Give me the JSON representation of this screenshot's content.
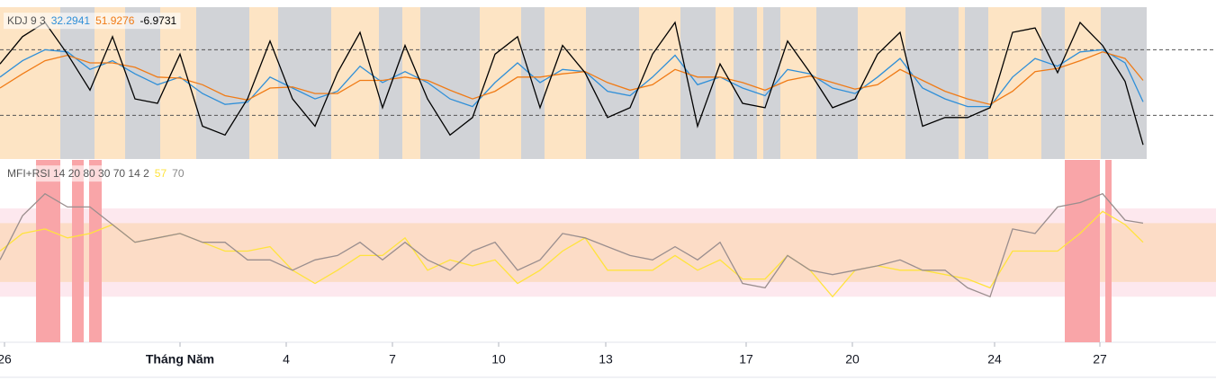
{
  "chart_data": [
    {
      "type": "line",
      "name": "KDJ 9 3",
      "xlim": [
        0,
        135.1
      ],
      "ylim": [
        -20,
        119
      ],
      "hlines": [
        80,
        20
      ],
      "x": [
        0,
        2.5,
        5,
        7.5,
        10,
        12.5,
        15,
        17.5,
        20,
        22.5,
        25,
        27.5,
        30,
        32.5,
        35,
        37.5,
        40,
        42.5,
        45,
        47.5,
        50,
        52.5,
        55,
        57.5,
        60,
        62.5,
        65,
        67.5,
        70,
        72.5,
        75,
        77.5,
        80,
        82.5,
        85,
        87.5,
        90,
        92.5,
        95,
        97.5,
        100,
        102.5,
        105,
        107.5,
        110,
        112.5,
        115,
        117.5,
        120,
        122.5,
        125,
        127
      ],
      "series": [
        {
          "color": "#2f8fd8",
          "values": [
            55,
            70,
            80,
            78,
            62,
            70,
            58,
            48,
            55,
            40,
            30,
            32,
            55,
            45,
            35,
            42,
            65,
            50,
            60,
            50,
            35,
            28,
            50,
            68,
            50,
            62,
            60,
            42,
            38,
            55,
            75,
            48,
            55,
            45,
            38,
            62,
            58,
            45,
            40,
            55,
            72,
            45,
            35,
            28,
            28,
            55,
            72,
            65,
            78,
            80,
            68,
            32.2941
          ]
        },
        {
          "color": "#f07b16",
          "values": [
            45,
            58,
            70,
            75,
            68,
            68,
            64,
            55,
            54,
            48,
            38,
            34,
            45,
            46,
            40,
            40,
            52,
            52,
            55,
            52,
            43,
            35,
            42,
            55,
            55,
            58,
            60,
            50,
            43,
            48,
            62,
            55,
            55,
            50,
            43,
            52,
            56,
            50,
            44,
            48,
            62,
            52,
            42,
            35,
            30,
            42,
            60,
            63,
            70,
            78,
            72,
            51.9276
          ]
        },
        {
          "color": "#000000",
          "values": [
            67,
            92,
            105,
            76,
            43,
            92,
            35,
            31,
            76,
            10,
            2,
            35,
            88,
            35,
            10,
            59,
            96,
            27,
            84,
            35,
            2,
            18,
            76,
            92,
            27,
            84,
            59,
            18,
            27,
            76,
            105,
            10,
            67,
            31,
            27,
            88,
            59,
            27,
            35,
            76,
            96,
            10,
            18,
            18,
            27,
            96,
            100,
            59,
            105,
            84,
            51,
            -6.9731
          ]
        }
      ],
      "bands": [
        {
          "start": 0,
          "end": 6.7,
          "color": "#fde4c4"
        },
        {
          "start": 6.7,
          "end": 10.5,
          "color": "#d1d3d7"
        },
        {
          "start": 10.5,
          "end": 13.9,
          "color": "#fde4c4"
        },
        {
          "start": 13.9,
          "end": 17.8,
          "color": "#d1d3d7"
        },
        {
          "start": 17.8,
          "end": 21.8,
          "color": "#fde4c4"
        },
        {
          "start": 21.8,
          "end": 27.7,
          "color": "#d1d3d7"
        },
        {
          "start": 27.7,
          "end": 30.9,
          "color": "#fde4c4"
        },
        {
          "start": 30.9,
          "end": 36.8,
          "color": "#d1d3d7"
        },
        {
          "start": 36.8,
          "end": 42.1,
          "color": "#fde4c4"
        },
        {
          "start": 42.1,
          "end": 44.7,
          "color": "#d1d3d7"
        },
        {
          "start": 44.7,
          "end": 46.7,
          "color": "#fde4c4"
        },
        {
          "start": 46.7,
          "end": 53.3,
          "color": "#d1d3d7"
        },
        {
          "start": 53.3,
          "end": 57.9,
          "color": "#fde4c4"
        },
        {
          "start": 57.9,
          "end": 60.5,
          "color": "#d1d3d7"
        },
        {
          "start": 60.5,
          "end": 65.1,
          "color": "#fde4c4"
        },
        {
          "start": 65.1,
          "end": 71,
          "color": "#d1d3d7"
        },
        {
          "start": 71,
          "end": 75.6,
          "color": "#fde4c4"
        },
        {
          "start": 75.6,
          "end": 79.5,
          "color": "#d1d3d7"
        },
        {
          "start": 79.5,
          "end": 81.5,
          "color": "#fde4c4"
        },
        {
          "start": 81.5,
          "end": 84.1,
          "color": "#d1d3d7"
        },
        {
          "start": 84.1,
          "end": 84.8,
          "color": "#fde4c4"
        },
        {
          "start": 84.8,
          "end": 86.7,
          "color": "#d1d3d7"
        },
        {
          "start": 86.7,
          "end": 90.7,
          "color": "#fde4c4"
        },
        {
          "start": 90.7,
          "end": 95.3,
          "color": "#d1d3d7"
        },
        {
          "start": 95.3,
          "end": 100.6,
          "color": "#fde4c4"
        },
        {
          "start": 100.6,
          "end": 106.5,
          "color": "#d1d3d7"
        },
        {
          "start": 106.5,
          "end": 107.2,
          "color": "#fde4c4"
        },
        {
          "start": 107.2,
          "end": 109.8,
          "color": "#d1d3d7"
        },
        {
          "start": 109.8,
          "end": 115.7,
          "color": "#fde4c4"
        },
        {
          "start": 115.7,
          "end": 118.3,
          "color": "#d1d3d7"
        },
        {
          "start": 118.3,
          "end": 122.3,
          "color": "#fde4c4"
        },
        {
          "start": 122.3,
          "end": 127.4,
          "color": "#d1d3d7"
        }
      ]
    },
    {
      "type": "line",
      "name": "MFI+RSI 14 20 80 30 70 14 2",
      "xlim": [
        0,
        135.1
      ],
      "ylim": [
        -11,
        113
      ],
      "xticks": [
        {
          "value": 0.5,
          "label": "26"
        },
        {
          "value": 20,
          "label": "Tháng Năm"
        },
        {
          "value": 31.8,
          "label": "4"
        },
        {
          "value": 43.6,
          "label": "7"
        },
        {
          "value": 55.4,
          "label": "10"
        },
        {
          "value": 67.3,
          "label": "13"
        },
        {
          "value": 82.9,
          "label": "17"
        },
        {
          "value": 94.7,
          "label": "20"
        },
        {
          "value": 110.5,
          "label": "24"
        },
        {
          "value": 122.2,
          "label": "27"
        }
      ],
      "x": [
        0,
        2.5,
        5,
        7.5,
        10,
        12.5,
        15,
        17.5,
        20,
        22.5,
        25,
        27.5,
        30,
        32.5,
        35,
        37.5,
        40,
        42.5,
        45,
        47.5,
        50,
        52.5,
        55,
        57.5,
        60,
        62.5,
        65,
        67.5,
        70,
        72.5,
        75,
        77.5,
        80,
        82.5,
        85,
        87.5,
        90,
        92.5,
        95,
        97.5,
        100,
        102.5,
        105,
        107.5,
        110,
        112.5,
        115,
        117.5,
        120,
        122.5,
        125,
        127
      ],
      "series": [
        {
          "color": "#ffe33d",
          "values": [
            51,
            63,
            66,
            60,
            63,
            69,
            57,
            60,
            63,
            57,
            51,
            51,
            54,
            38,
            29,
            38,
            48,
            48,
            60,
            38,
            45,
            41,
            45,
            29,
            38,
            51,
            60,
            38,
            38,
            38,
            48,
            38,
            45,
            32,
            32,
            48,
            38,
            20,
            38,
            41,
            38,
            38,
            35,
            32,
            26,
            51,
            51,
            51,
            63,
            78,
            69,
            57
          ]
        },
        {
          "color": "#9a8e8e",
          "values": [
            45,
            75,
            90,
            81,
            81,
            69,
            57,
            60,
            63,
            57,
            57,
            45,
            45,
            38,
            45,
            48,
            57,
            45,
            57,
            45,
            38,
            51,
            57,
            38,
            45,
            63,
            60,
            54,
            48,
            45,
            54,
            45,
            57,
            29,
            26,
            48,
            38,
            35,
            38,
            41,
            45,
            38,
            38,
            26,
            20,
            66,
            63,
            81,
            84,
            90,
            72,
            70
          ]
        }
      ],
      "bands": [
        {
          "range": [
            20,
            80
          ],
          "color": "#fde8ee"
        },
        {
          "range": [
            30,
            70
          ],
          "color": "#fcdcc6"
        }
      ],
      "highlights": [
        {
          "start": 4,
          "end": 6.7
        },
        {
          "start": 8,
          "end": 9.3
        },
        {
          "start": 9.9,
          "end": 11.3
        },
        {
          "start": 118.3,
          "end": 122.2
        },
        {
          "start": 122.8,
          "end": 123.5
        }
      ],
      "highlight_color": "#f9a5a8"
    }
  ]
}
